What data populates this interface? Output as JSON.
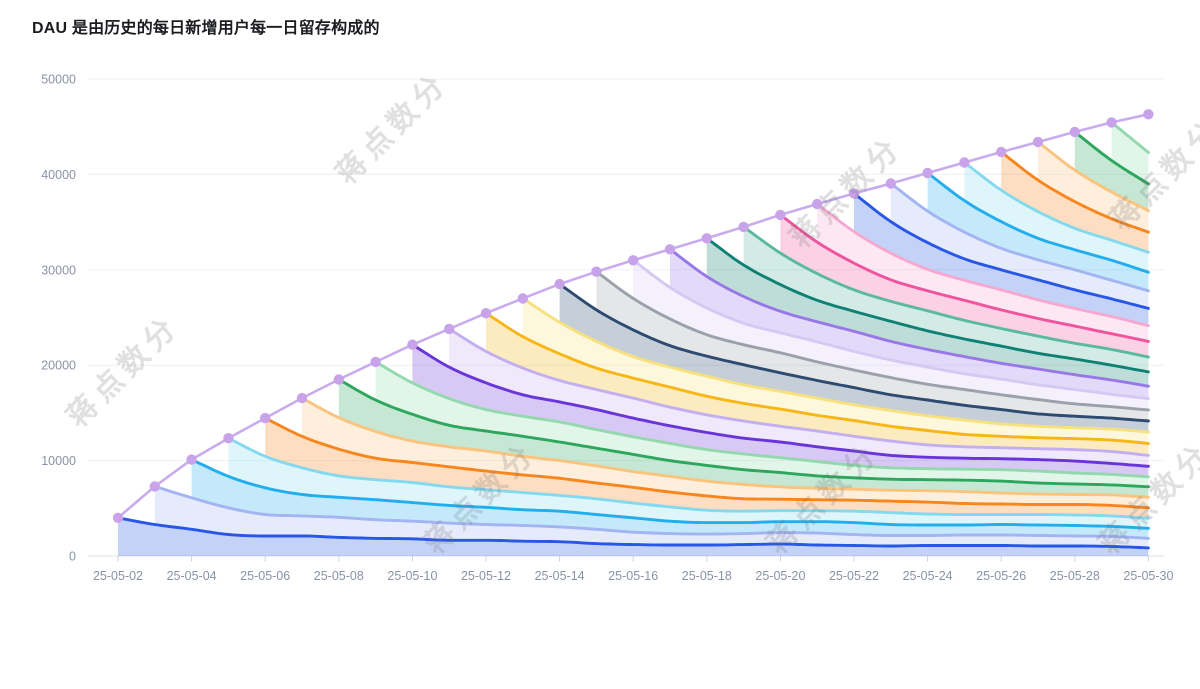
{
  "header": {
    "title": "DAU 是由历史的每日新增用户每一日留存构成的"
  },
  "watermark": {
    "text": "蒋点数分"
  },
  "chart_data": {
    "type": "area",
    "variant": "stacked-cohort-retention-area",
    "title": "DAU 是由历史的每日新增用户每一日留存构成的",
    "xlabel": "",
    "ylabel": "",
    "grid": true,
    "legend": false,
    "ylim": [
      0,
      50000
    ],
    "y_ticks": [
      0,
      10000,
      20000,
      30000,
      40000,
      50000
    ],
    "x": [
      "25-05-02",
      "25-05-03",
      "25-05-04",
      "25-05-05",
      "25-05-06",
      "25-05-07",
      "25-05-08",
      "25-05-09",
      "25-05-10",
      "25-05-11",
      "25-05-12",
      "25-05-13",
      "25-05-14",
      "25-05-15",
      "25-05-16",
      "25-05-17",
      "25-05-18",
      "25-05-19",
      "25-05-20",
      "25-05-21",
      "25-05-22",
      "25-05-23",
      "25-05-24",
      "25-05-25",
      "25-05-26",
      "25-05-27",
      "25-05-28",
      "25-05-29",
      "25-05-30"
    ],
    "total_dau": [
      4000,
      7300,
      10100,
      12350,
      14450,
      16550,
      18500,
      20350,
      22150,
      23800,
      25450,
      27000,
      28500,
      29800,
      31000,
      32150,
      33300,
      34500,
      35750,
      36900,
      38000,
      39050,
      40150,
      41250,
      42350,
      43400,
      44450,
      45450,
      46300
    ],
    "new_users_per_day": 4000,
    "retention_by_day": [
      1,
      0.825,
      0.7,
      0.5625,
      0.525,
      0.525,
      0.4875,
      0.4625,
      0.45,
      0.4125,
      0.4125,
      0.3875,
      0.375,
      0.325,
      0.3,
      0.2875,
      0.2875,
      0.3,
      0.3125,
      0.2875,
      0.275,
      0.2625,
      0.275,
      0.275,
      0.275,
      0.2625,
      0.2625,
      0.25,
      0.2125
    ],
    "cohort_note": "each cohort starts on its date at the envelope and decays by retention; stacked oldest at bottom",
    "colors": {
      "cohort_palette_cycle": [
        "#2857e6",
        "#a3b4f2",
        "#22aeec",
        "#84d9ee",
        "#f8861c",
        "#fac47e",
        "#2ca75d",
        "#93d9ad",
        "#6a35d8",
        "#c3aff0",
        "#f8b616",
        "#f7e07e",
        "#2d4a70",
        "#9aa1ab",
        "#d5c8f3",
        "#9877e8",
        "#0f8174",
        "#5ab99e",
        "#f0549f",
        "#f6a8d1"
      ],
      "area_fill_opacity": 0.27,
      "envelope_line": "#c9aced",
      "envelope_dot": "#c9a3ea",
      "grid_line": "#eef0f4",
      "axis_line": "#dde0e6",
      "tick_mark": "#ccd1d8",
      "tick_label": "#8a92a5",
      "title_color": "#1b1c20"
    }
  }
}
